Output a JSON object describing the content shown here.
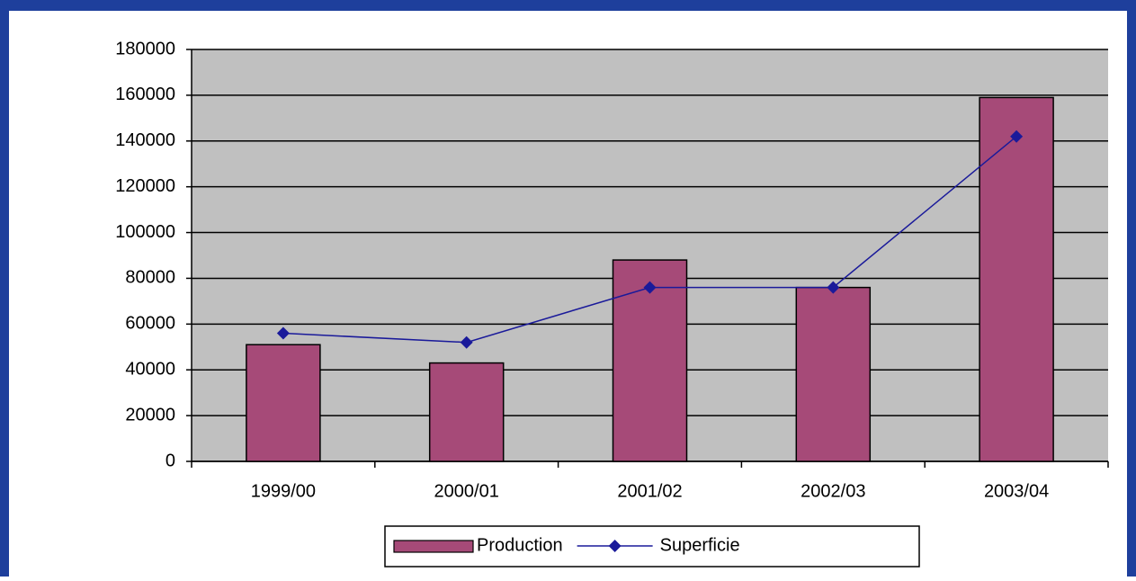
{
  "chart_data": {
    "type": "bar",
    "categories": [
      "1999/00",
      "2000/01",
      "2001/02",
      "2002/03",
      "2003/04"
    ],
    "series": [
      {
        "name": "Production",
        "type": "bar",
        "color": "#a64a78",
        "values": [
          51000,
          43000,
          88000,
          76000,
          159000
        ]
      },
      {
        "name": "Superficie",
        "type": "line",
        "color": "#1a1a9a",
        "values": [
          56000,
          52000,
          76000,
          76000,
          142000
        ]
      }
    ],
    "ylim": [
      0,
      180000
    ],
    "yticks": [
      0,
      20000,
      40000,
      60000,
      80000,
      100000,
      120000,
      140000,
      160000,
      180000
    ],
    "grid": true,
    "legend": "bottom"
  }
}
